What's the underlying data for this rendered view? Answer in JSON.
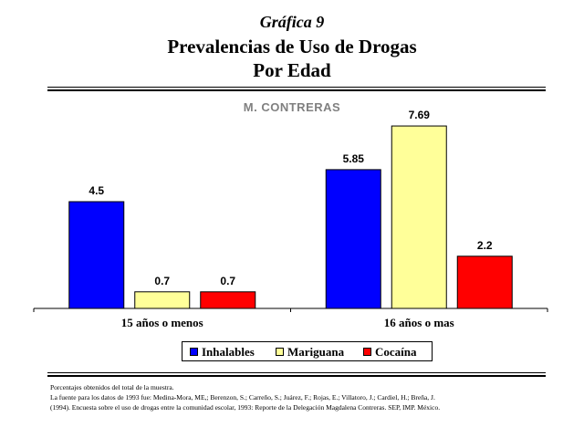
{
  "header": {
    "kicker": "Gráfica 9",
    "title_line1": "Prevalencias de Uso de Drogas",
    "title_line2": "Por Edad"
  },
  "footnotes": {
    "line1": "Porcentajes obtenidos del total de la muestra.",
    "line2": "La fuente para los datos de 1993 fue: Medina-Mora, ME,; Berenzon, S.; Carreño, S.; Juárez, F.; Rojas, E.; Villatoro, J.; Cardiel, H.; Breña, J.",
    "line3": "(1994). Encuesta sobre el uso de drogas entre la comunidad escolar, 1993: Reporte de la Delegación Magdalena Contreras. SEP, IMP. México."
  },
  "chart_data": {
    "type": "bar",
    "title": "M. CONTRERAS",
    "categories": [
      "15 años o menos",
      "16 años o mas"
    ],
    "series": [
      {
        "name": "Inhalables",
        "values": [
          4.5,
          5.85
        ],
        "labels": [
          "4.5",
          "5.85"
        ],
        "color": "#0000ff"
      },
      {
        "name": "Mariguana",
        "values": [
          0.7,
          7.69
        ],
        "labels": [
          "0.7",
          "7.69"
        ],
        "color": "#ffff99"
      },
      {
        "name": "Cocaína",
        "values": [
          0.7,
          2.2
        ],
        "labels": [
          "0.7",
          "2.2"
        ],
        "color": "#ff0000"
      }
    ],
    "ylim": [
      0,
      8
    ],
    "grid": false,
    "legend": "bottom"
  }
}
